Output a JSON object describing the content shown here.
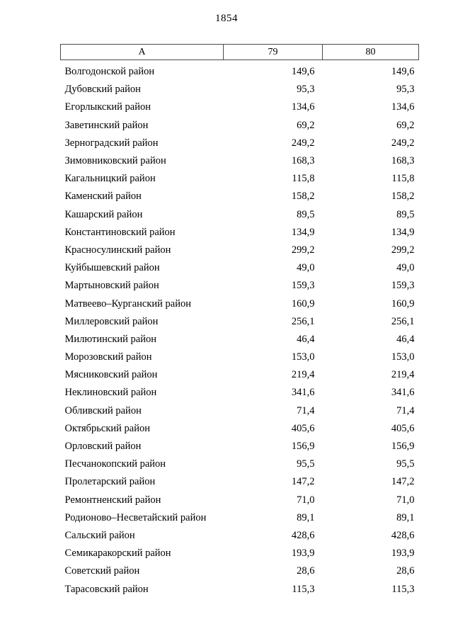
{
  "page": {
    "number": "1854"
  },
  "table": {
    "headers": [
      "А",
      "79",
      "80"
    ],
    "rows": [
      [
        "Волгодонской район",
        "149,6",
        "149,6"
      ],
      [
        "Дубовский район",
        "95,3",
        "95,3"
      ],
      [
        "Егорлыкский район",
        "134,6",
        "134,6"
      ],
      [
        "Заветинский район",
        "69,2",
        "69,2"
      ],
      [
        "Зерноградский район",
        "249,2",
        "249,2"
      ],
      [
        "Зимовниковский район",
        "168,3",
        "168,3"
      ],
      [
        "Кагальницкий район",
        "115,8",
        "115,8"
      ],
      [
        "Каменский район",
        "158,2",
        "158,2"
      ],
      [
        "Кашарский район",
        "89,5",
        "89,5"
      ],
      [
        "Константиновский район",
        "134,9",
        "134,9"
      ],
      [
        "Красносулинский район",
        "299,2",
        "299,2"
      ],
      [
        "Куйбышевский район",
        "49,0",
        "49,0"
      ],
      [
        "Мартыновский район",
        "159,3",
        "159,3"
      ],
      [
        "Матвеево–Курганский район",
        "160,9",
        "160,9"
      ],
      [
        "Миллеровский район",
        "256,1",
        "256,1"
      ],
      [
        "Милютинский район",
        "46,4",
        "46,4"
      ],
      [
        "Морозовский район",
        "153,0",
        "153,0"
      ],
      [
        "Мясниковский район",
        "219,4",
        "219,4"
      ],
      [
        "Неклиновский район",
        "341,6",
        "341,6"
      ],
      [
        "Обливский район",
        "71,4",
        "71,4"
      ],
      [
        "Октябрьский район",
        "405,6",
        "405,6"
      ],
      [
        "Орловский район",
        "156,9",
        "156,9"
      ],
      [
        "Песчанокопский район",
        "95,5",
        "95,5"
      ],
      [
        "Пролетарский район",
        "147,2",
        "147,2"
      ],
      [
        "Ремонтненский район",
        "71,0",
        "71,0"
      ],
      [
        "Родионово–Несветайский район",
        "89,1",
        "89,1"
      ],
      [
        "Сальский район",
        "428,6",
        "428,6"
      ],
      [
        "Семикаракорский район",
        "193,9",
        "193,9"
      ],
      [
        "Советский район",
        "28,6",
        "28,6"
      ],
      [
        "Тарасовский район",
        "115,3",
        "115,3"
      ]
    ]
  }
}
